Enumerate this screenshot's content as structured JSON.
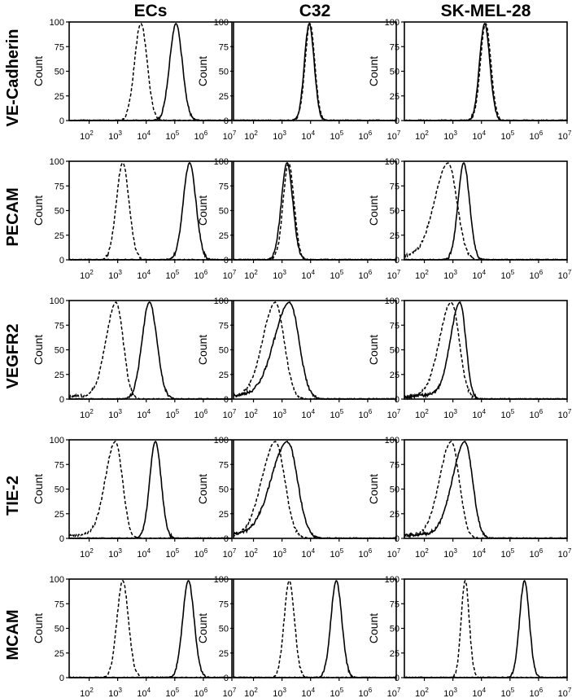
{
  "columns": [
    "ECs",
    "C32",
    "SK-MEL-28"
  ],
  "rows": [
    "VE-Cadherin",
    "PECAM",
    "VEGFR2",
    "TIE-2",
    "MCAM"
  ],
  "y_axis_label": "Count",
  "y_ticks": [
    "0",
    "25",
    "50",
    "75",
    "100"
  ],
  "x_tick_labels": [
    {
      "base": "10",
      "exp": "2"
    },
    {
      "base": "10",
      "exp": "3"
    },
    {
      "base": "10",
      "exp": "4"
    },
    {
      "base": "10",
      "exp": "5"
    },
    {
      "base": "10",
      "exp": "6"
    },
    {
      "base": "10",
      "exp": "7"
    }
  ],
  "colors": {
    "line": "#000000",
    "frame": "#000000",
    "background": "#ffffff"
  },
  "chart_data": {
    "type": "line",
    "description_grid": "5 rows x 3 columns of flow cytometry histograms",
    "xscale": "log",
    "xlim": [
      20,
      10000000
    ],
    "ylim": [
      0,
      100
    ],
    "ylabel": "Count",
    "series_styles": {
      "control": "dashed",
      "stained": "solid"
    },
    "panels": [
      {
        "row": "VE-Cadherin",
        "column": "ECs",
        "control_peak": 6500,
        "control_width": 0.22,
        "stained_peak": 110000,
        "stained_width": 0.22
      },
      {
        "row": "VE-Cadherin",
        "column": "C32",
        "control_peak": 9500,
        "control_width": 0.17,
        "stained_peak": 9000,
        "stained_width": 0.17
      },
      {
        "row": "VE-Cadherin",
        "column": "SK-MEL-28",
        "control_peak": 14000,
        "control_width": 0.18,
        "stained_peak": 13000,
        "stained_width": 0.18
      },
      {
        "row": "PECAM",
        "column": "ECs",
        "control_peak": 1500,
        "control_width": 0.22,
        "stained_peak": 330000,
        "stained_width": 0.22
      },
      {
        "row": "PECAM",
        "column": "C32",
        "control_peak": 1700,
        "control_width": 0.19,
        "stained_peak": 1500,
        "stained_width": 0.2
      },
      {
        "row": "PECAM",
        "column": "SK-MEL-28",
        "control_peak": 700,
        "control_width": 0.3,
        "control_tail": 0.6,
        "stained_peak": 2400,
        "stained_width": 0.2
      },
      {
        "row": "VEGFR2",
        "column": "ECs",
        "control_peak": 900,
        "control_width": 0.24,
        "control_tail": 0.5,
        "stained_peak": 13000,
        "stained_width": 0.26
      },
      {
        "row": "VEGFR2",
        "column": "C32",
        "control_peak": 600,
        "control_width": 0.3,
        "control_tail": 0.5,
        "stained_peak": 1900,
        "stained_width": 0.32,
        "stained_tail": 0.7
      },
      {
        "row": "VEGFR2",
        "column": "SK-MEL-28",
        "control_peak": 900,
        "control_width": 0.27,
        "control_tail": 0.55,
        "stained_peak": 1800,
        "stained_width": 0.2,
        "stained_tail": 0.7
      },
      {
        "row": "TIE-2",
        "column": "ECs",
        "control_peak": 850,
        "control_width": 0.24,
        "control_tail": 0.5,
        "stained_peak": 21000,
        "stained_width": 0.2
      },
      {
        "row": "TIE-2",
        "column": "C32",
        "control_peak": 600,
        "control_width": 0.32,
        "control_tail": 0.5,
        "stained_peak": 1600,
        "stained_width": 0.34,
        "stained_tail": 0.7
      },
      {
        "row": "TIE-2",
        "column": "SK-MEL-28",
        "control_peak": 900,
        "control_width": 0.27,
        "control_tail": 0.55,
        "stained_peak": 2700,
        "stained_width": 0.26,
        "stained_tail": 0.7
      },
      {
        "row": "MCAM",
        "column": "ECs",
        "control_peak": 1500,
        "control_width": 0.2,
        "stained_peak": 300000,
        "stained_width": 0.2
      },
      {
        "row": "MCAM",
        "column": "C32",
        "control_peak": 1800,
        "control_width": 0.18,
        "stained_peak": 80000,
        "stained_width": 0.19
      },
      {
        "row": "MCAM",
        "column": "SK-MEL-28",
        "control_peak": 2700,
        "control_width": 0.14,
        "stained_peak": 320000,
        "stained_width": 0.17
      }
    ]
  }
}
